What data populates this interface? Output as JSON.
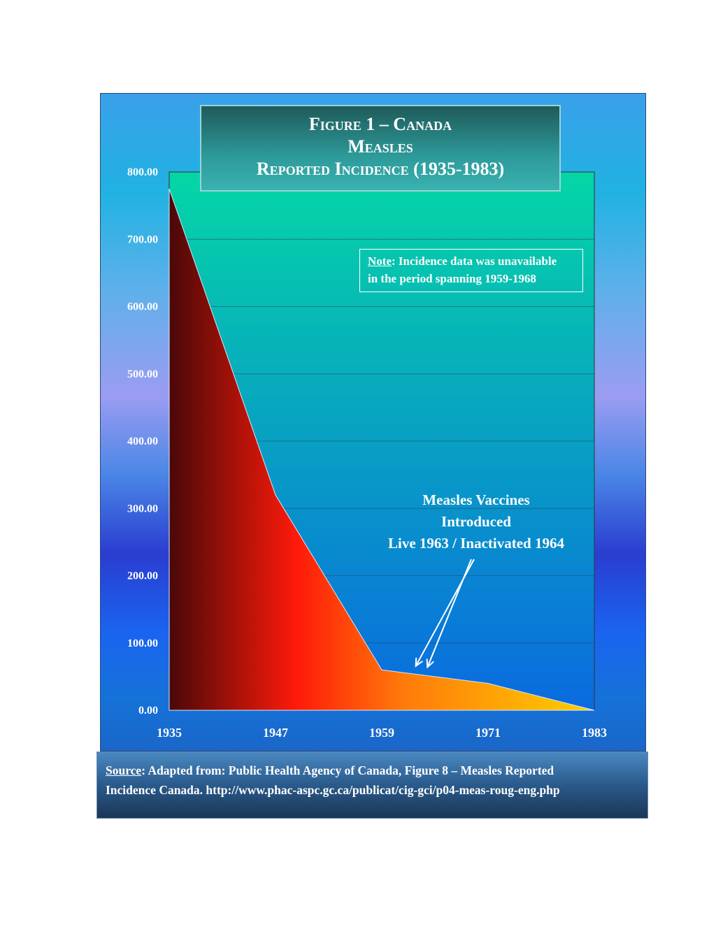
{
  "title": {
    "line1": "Figure 1 – Canada",
    "line2": "Measles",
    "line3_main": "Reported Incidence",
    "line3_years": "(1935-1983)"
  },
  "note": {
    "lead": "Note",
    "text_line1": ": Incidence data was unavailable",
    "text_line2": "in the period spanning 1959-1968"
  },
  "annotation": {
    "line1": "Measles Vaccines",
    "line2": "Introduced",
    "line3": "Live 1963 / Inactivated 1964"
  },
  "source": {
    "lead": "Source",
    "text_line1": ": Adapted from: Public Health Agency of Canada, Figure 8 – Measles Reported",
    "text_line2": "Incidence Canada. http://www.phac-aspc.gc.ca/publicat/cig-gci/p04-meas-roug-eng.php"
  },
  "colors": {
    "area_dark": "#4a0808",
    "area_red": "#ff1a0a",
    "area_orange": "#ff7a0a",
    "area_yellow": "#ffd000",
    "plot_top": "#05d6a6",
    "plot_bottom": "#0a6ae0"
  },
  "chart_data": {
    "type": "area",
    "x": [
      1935,
      1947,
      1959,
      1971,
      1983
    ],
    "values": [
      775,
      320,
      60,
      40,
      0
    ],
    "ylim": [
      0,
      800
    ],
    "y_ticks": [
      "0.00",
      "100.00",
      "200.00",
      "300.00",
      "400.00",
      "500.00",
      "600.00",
      "700.00",
      "800.00"
    ],
    "x_ticks": [
      "1935",
      "1947",
      "1959",
      "1971",
      "1983"
    ],
    "grid": true,
    "arrow_target_years": [
      1963,
      1964
    ]
  }
}
